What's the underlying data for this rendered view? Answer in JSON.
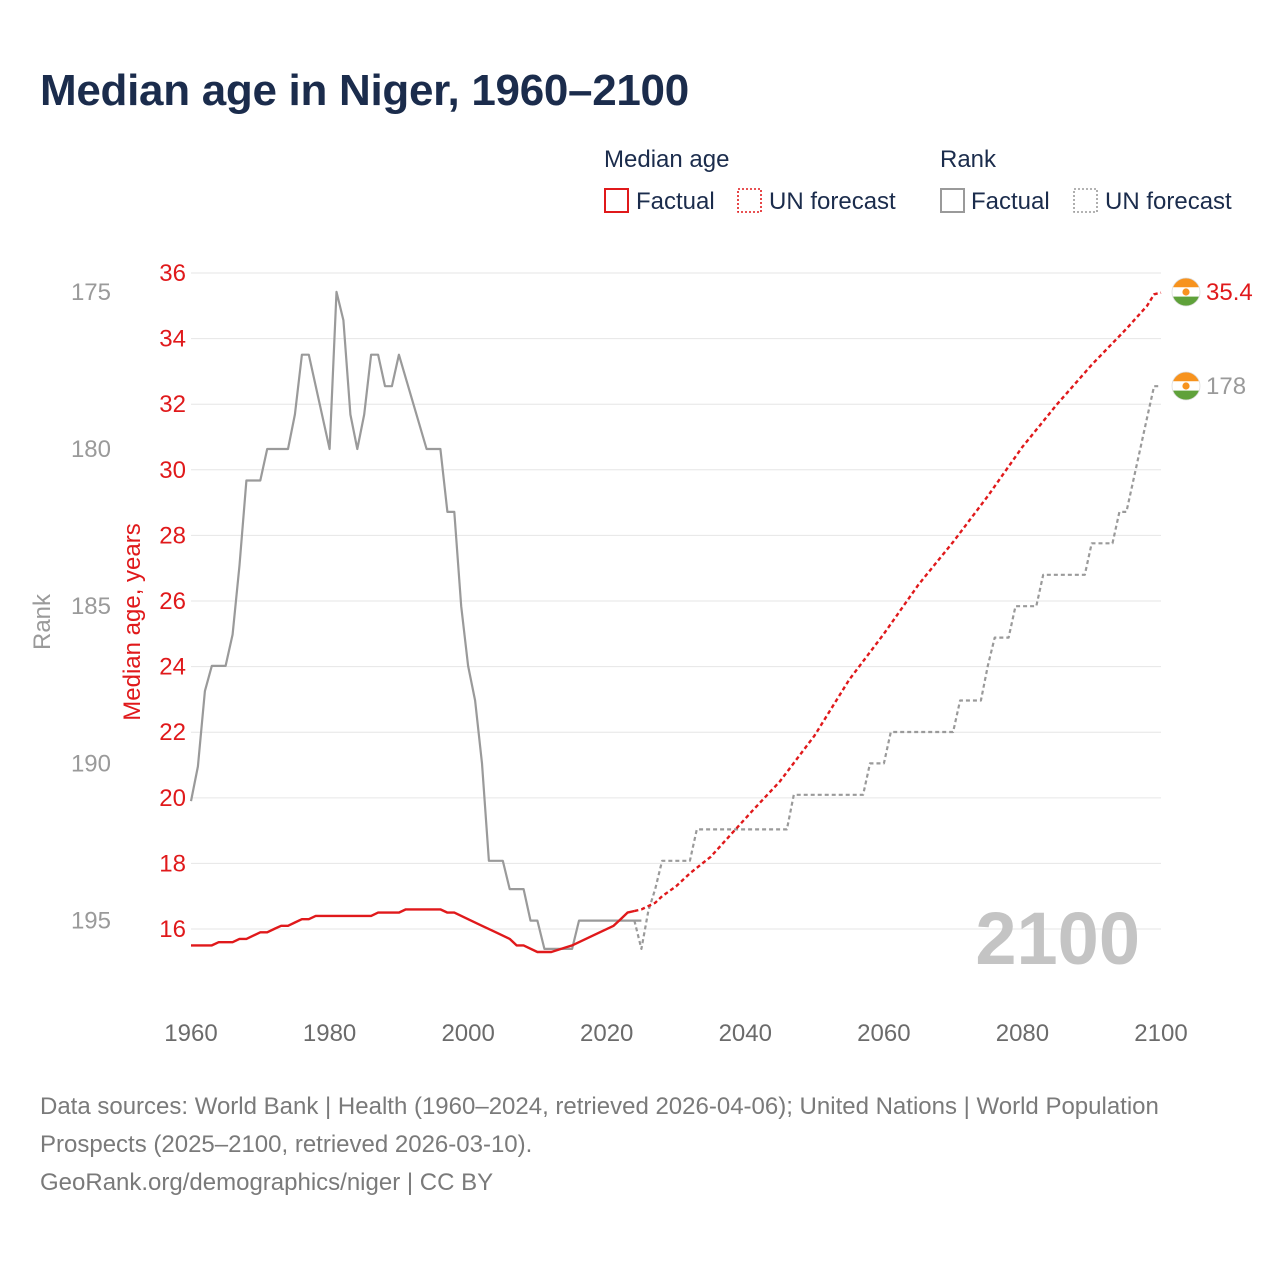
{
  "title": "Median age in Niger, 1960–2100",
  "legend": {
    "median_group": "Median age",
    "rank_group": "Rank",
    "factual": "Factual",
    "forecast": "UN forecast"
  },
  "colors": {
    "median": "#e0191b",
    "rank": "#9a9a9a",
    "grid": "#e6e6e6",
    "title": "#1b2c4c",
    "year_watermark": "#c4c4c4",
    "flag_orange": "#f7931e",
    "flag_green": "#5fa13a"
  },
  "year_watermark": "2100",
  "end_labels": {
    "median": "35.4",
    "rank": "178"
  },
  "footer": {
    "sources": "Data sources: World Bank | Health (1960–2024, retrieved 2026-04-06); United Nations | World Population Prospects (2025–2100, retrieved 2026-03-10).",
    "credit": "GeoRank.org/demographics/niger | CC BY"
  },
  "chart_data": {
    "type": "line",
    "title": "Median age in Niger, 1960–2100",
    "xlabel": "",
    "ylabel_left_inner": "Median age, years",
    "ylabel_left_outer": "Rank",
    "xlim": [
      1960,
      2100
    ],
    "x_ticks": [
      1960,
      1980,
      2000,
      2020,
      2040,
      2060,
      2080,
      2100
    ],
    "median_axis": {
      "range": [
        15.3,
        36
      ],
      "ticks": [
        16,
        18,
        20,
        22,
        24,
        26,
        28,
        30,
        32,
        34,
        36
      ]
    },
    "rank_axis": {
      "range": [
        174.4,
        196
      ],
      "inverted": true,
      "ticks": [
        175,
        180,
        185,
        190,
        195
      ]
    },
    "series": [
      {
        "name": "Median age — Factual",
        "axis": "median",
        "style": "solid",
        "points": [
          [
            1960,
            15.5
          ],
          [
            1963,
            15.5
          ],
          [
            1964,
            15.6
          ],
          [
            1966,
            15.6
          ],
          [
            1967,
            15.7
          ],
          [
            1968,
            15.7
          ],
          [
            1969,
            15.8
          ],
          [
            1970,
            15.9
          ],
          [
            1971,
            15.9
          ],
          [
            1972,
            16.0
          ],
          [
            1973,
            16.1
          ],
          [
            1974,
            16.1
          ],
          [
            1975,
            16.2
          ],
          [
            1976,
            16.3
          ],
          [
            1977,
            16.3
          ],
          [
            1978,
            16.4
          ],
          [
            1985,
            16.4
          ],
          [
            1986,
            16.4
          ],
          [
            1987,
            16.5
          ],
          [
            1990,
            16.5
          ],
          [
            1991,
            16.6
          ],
          [
            1996,
            16.6
          ],
          [
            1997,
            16.5
          ],
          [
            1998,
            16.5
          ],
          [
            2000,
            16.3
          ],
          [
            2002,
            16.1
          ],
          [
            2004,
            15.9
          ],
          [
            2006,
            15.7
          ],
          [
            2007,
            15.5
          ],
          [
            2008,
            15.5
          ],
          [
            2010,
            15.3
          ],
          [
            2011,
            15.3
          ],
          [
            2012,
            15.3
          ],
          [
            2015,
            15.5
          ],
          [
            2018,
            15.8
          ],
          [
            2021,
            16.1
          ],
          [
            2022,
            16.3
          ],
          [
            2023,
            16.5
          ],
          [
            2024,
            16.55
          ]
        ]
      },
      {
        "name": "Median age — UN forecast",
        "axis": "median",
        "style": "dashed",
        "points": [
          [
            2024,
            16.55
          ],
          [
            2025,
            16.6
          ],
          [
            2027,
            16.8
          ],
          [
            2028,
            17.0
          ],
          [
            2030,
            17.3
          ],
          [
            2032,
            17.7
          ],
          [
            2035,
            18.2
          ],
          [
            2038,
            18.9
          ],
          [
            2041,
            19.6
          ],
          [
            2045,
            20.5
          ],
          [
            2050,
            21.9
          ],
          [
            2055,
            23.6
          ],
          [
            2060,
            25.0
          ],
          [
            2065,
            26.5
          ],
          [
            2070,
            27.8
          ],
          [
            2075,
            29.2
          ],
          [
            2080,
            30.7
          ],
          [
            2085,
            32.0
          ],
          [
            2090,
            33.2
          ],
          [
            2095,
            34.3
          ],
          [
            2098,
            35.0
          ],
          [
            2099,
            35.35
          ],
          [
            2100,
            35.4
          ]
        ]
      },
      {
        "name": "Rank — Factual",
        "axis": "rank",
        "style": "solid",
        "points": [
          [
            1960,
            191.2
          ],
          [
            1961,
            190.1
          ],
          [
            1962,
            187.7
          ],
          [
            1963,
            186.9
          ],
          [
            1965,
            186.9
          ],
          [
            1966,
            185.9
          ],
          [
            1967,
            183.7
          ],
          [
            1968,
            181.0
          ],
          [
            1970,
            181.0
          ],
          [
            1971,
            180.0
          ],
          [
            1974,
            180.0
          ],
          [
            1975,
            178.9
          ],
          [
            1976,
            177.0
          ],
          [
            1977,
            177.0
          ],
          [
            1980,
            180.0
          ],
          [
            1981,
            175.0
          ],
          [
            1982,
            175.9
          ],
          [
            1983,
            178.9
          ],
          [
            1984,
            180.0
          ],
          [
            1985,
            178.9
          ],
          [
            1986,
            177.0
          ],
          [
            1987,
            177.0
          ],
          [
            1988,
            178.0
          ],
          [
            1989,
            178.0
          ],
          [
            1990,
            177.0
          ],
          [
            1994,
            180.0
          ],
          [
            1996,
            180.0
          ],
          [
            1997,
            182.0
          ],
          [
            1998,
            182.0
          ],
          [
            1999,
            185.0
          ],
          [
            2000,
            186.9
          ],
          [
            2001,
            188.0
          ],
          [
            2002,
            190.0
          ],
          [
            2003,
            193.1
          ],
          [
            2005,
            193.1
          ],
          [
            2006,
            194.0
          ],
          [
            2008,
            194.0
          ],
          [
            2009,
            195.0
          ],
          [
            2010,
            195.0
          ],
          [
            2011,
            195.9
          ],
          [
            2015,
            195.9
          ],
          [
            2016,
            195.0
          ],
          [
            2024,
            195.0
          ],
          [
            2025,
            195.0
          ]
        ]
      },
      {
        "name": "Rank — UN forecast",
        "axis": "rank",
        "style": "dashed",
        "points": [
          [
            2024,
            195.0
          ],
          [
            2025,
            195.9
          ],
          [
            2026,
            194.7
          ],
          [
            2027,
            194.0
          ],
          [
            2028,
            193.1
          ],
          [
            2032,
            193.1
          ],
          [
            2033,
            192.1
          ],
          [
            2046,
            192.1
          ],
          [
            2047,
            191.0
          ],
          [
            2057,
            191.0
          ],
          [
            2058,
            190.0
          ],
          [
            2060,
            190.0
          ],
          [
            2061,
            189.0
          ],
          [
            2070,
            189.0
          ],
          [
            2071,
            188.0
          ],
          [
            2074,
            188.0
          ],
          [
            2075,
            186.9
          ],
          [
            2076,
            186.0
          ],
          [
            2078,
            186.0
          ],
          [
            2079,
            185.0
          ],
          [
            2082,
            185.0
          ],
          [
            2083,
            184.0
          ],
          [
            2089,
            184.0
          ],
          [
            2090,
            183.0
          ],
          [
            2093,
            183.0
          ],
          [
            2094,
            182.0
          ],
          [
            2095,
            182.0
          ],
          [
            2096,
            181.0
          ],
          [
            2098,
            179.0
          ],
          [
            2099,
            178.0
          ],
          [
            2100,
            178.0
          ]
        ]
      }
    ],
    "end_values": {
      "median": 35.4,
      "rank": 178
    }
  }
}
